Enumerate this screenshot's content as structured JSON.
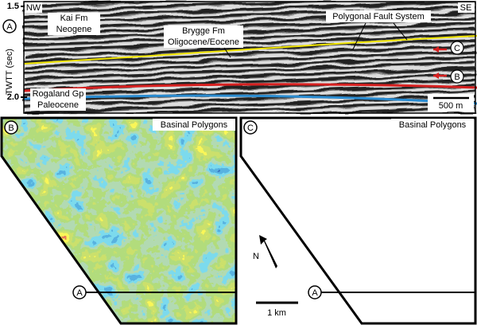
{
  "panel_a": {
    "label": "A",
    "y_axis_label": "TWTT (sec)",
    "y_ticks": [
      "1.5",
      "2.0"
    ],
    "corner_left": "NW",
    "corner_right": "SE",
    "kai": [
      "Kai Fm",
      "Neogene"
    ],
    "brygge": [
      "Brygge Fm",
      "Oligocene/Eocene"
    ],
    "faults": "Polygonal Fault System",
    "rogaland": [
      "Rogaland Gp",
      "Paleocene"
    ],
    "scale": "500 m",
    "horizon_c": "C",
    "horizon_b": "B"
  },
  "panel_b": {
    "label": "B",
    "title": "Basinal Polygons",
    "line_label": "A"
  },
  "panel_c": {
    "label": "C",
    "title": "Basinal Polygons",
    "line_label": "A"
  },
  "north": "N",
  "map_scale": "1 km"
}
